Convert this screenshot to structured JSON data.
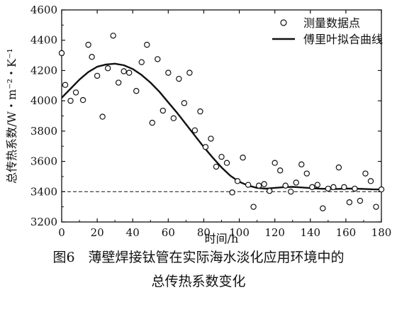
{
  "chart_data": {
    "type": "scatter",
    "xlabel": "时间/h",
    "ylabel": "总传热系数/W・m⁻²・K⁻¹",
    "xlim": [
      0,
      180
    ],
    "ylim": [
      3200,
      4600
    ],
    "x_ticks": [
      0,
      20,
      40,
      60,
      80,
      100,
      120,
      140,
      160,
      180
    ],
    "y_ticks": [
      3200,
      3400,
      3600,
      3800,
      4000,
      4200,
      4400,
      4600
    ],
    "legend_placement": "top-right",
    "reference_line": {
      "y": 3400,
      "style": "dashed"
    },
    "series": [
      {
        "name": "测量数据点",
        "marker": "open-circle",
        "points": [
          [
            0,
            4315
          ],
          [
            2,
            4105
          ],
          [
            5,
            4000
          ],
          [
            8,
            4055
          ],
          [
            12,
            4005
          ],
          [
            15,
            4370
          ],
          [
            17,
            4290
          ],
          [
            20,
            4165
          ],
          [
            23,
            3895
          ],
          [
            26,
            4215
          ],
          [
            29,
            4430
          ],
          [
            32,
            4120
          ],
          [
            35,
            4195
          ],
          [
            38,
            4185
          ],
          [
            42,
            4065
          ],
          [
            45,
            4255
          ],
          [
            48,
            4370
          ],
          [
            51,
            3855
          ],
          [
            54,
            4275
          ],
          [
            57,
            3935
          ],
          [
            60,
            4185
          ],
          [
            63,
            3885
          ],
          [
            66,
            4145
          ],
          [
            69,
            3985
          ],
          [
            72,
            4185
          ],
          [
            75,
            3805
          ],
          [
            78,
            3930
          ],
          [
            81,
            3695
          ],
          [
            84,
            3750
          ],
          [
            87,
            3565
          ],
          [
            90,
            3630
          ],
          [
            93,
            3590
          ],
          [
            96,
            3395
          ],
          [
            99,
            3470
          ],
          [
            102,
            3625
          ],
          [
            105,
            3445
          ],
          [
            108,
            3300
          ],
          [
            111,
            3440
          ],
          [
            114,
            3450
          ],
          [
            117,
            3405
          ],
          [
            120,
            3590
          ],
          [
            123,
            3540
          ],
          [
            126,
            3440
          ],
          [
            129,
            3400
          ],
          [
            132,
            3460
          ],
          [
            135,
            3580
          ],
          [
            138,
            3520
          ],
          [
            141,
            3430
          ],
          [
            144,
            3445
          ],
          [
            147,
            3290
          ],
          [
            150,
            3420
          ],
          [
            153,
            3430
          ],
          [
            156,
            3560
          ],
          [
            159,
            3430
          ],
          [
            162,
            3330
          ],
          [
            165,
            3420
          ],
          [
            168,
            3340
          ],
          [
            171,
            3520
          ],
          [
            174,
            3470
          ],
          [
            177,
            3300
          ],
          [
            180,
            3415
          ]
        ]
      },
      {
        "name": "傅里叶拟合曲线",
        "marker": "line",
        "points": [
          [
            0,
            4020
          ],
          [
            5,
            4080
          ],
          [
            10,
            4140
          ],
          [
            15,
            4190
          ],
          [
            20,
            4225
          ],
          [
            25,
            4240
          ],
          [
            30,
            4245
          ],
          [
            35,
            4235
          ],
          [
            40,
            4210
          ],
          [
            45,
            4170
          ],
          [
            50,
            4120
          ],
          [
            55,
            4060
          ],
          [
            60,
            3990
          ],
          [
            65,
            3920
          ],
          [
            70,
            3845
          ],
          [
            75,
            3770
          ],
          [
            80,
            3695
          ],
          [
            85,
            3625
          ],
          [
            90,
            3560
          ],
          [
            95,
            3505
          ],
          [
            100,
            3465
          ],
          [
            105,
            3440
          ],
          [
            110,
            3425
          ],
          [
            115,
            3420
          ],
          [
            120,
            3425
          ],
          [
            125,
            3430
          ],
          [
            130,
            3432
          ],
          [
            135,
            3428
          ],
          [
            140,
            3424
          ],
          [
            145,
            3420
          ],
          [
            150,
            3418
          ],
          [
            155,
            3418
          ],
          [
            160,
            3420
          ],
          [
            165,
            3420
          ],
          [
            170,
            3418
          ],
          [
            175,
            3416
          ],
          [
            180,
            3415
          ]
        ]
      }
    ]
  },
  "caption": {
    "line1": "图6　薄壁焊接钛管在实际海水淡化应用环境中的",
    "line2": "总传热系数变化"
  }
}
